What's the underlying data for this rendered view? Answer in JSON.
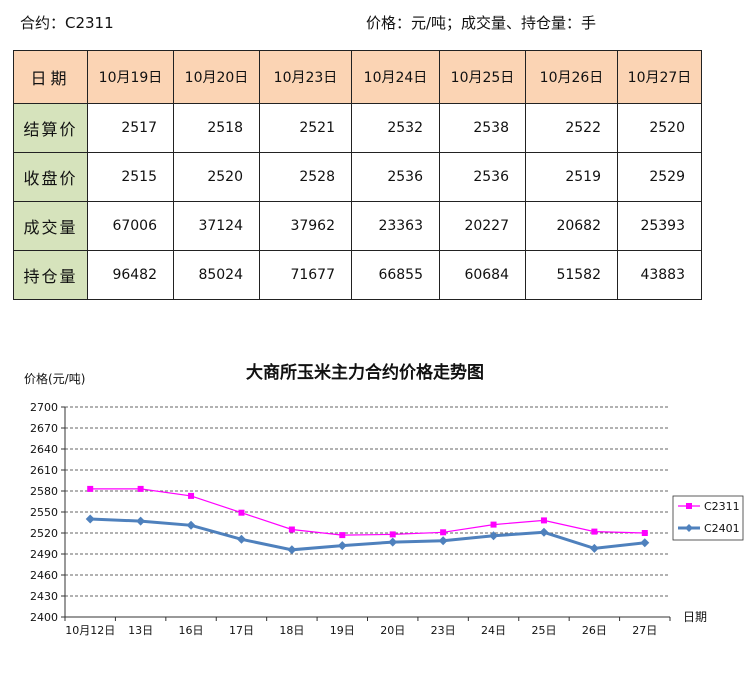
{
  "header": {
    "contract": "合约：C2311",
    "units": "价格：元/吨；成交量、持仓量：手"
  },
  "table": {
    "corner": "日期",
    "columns": [
      "10月19日",
      "10月20日",
      "10月23日",
      "10月24日",
      "10月25日",
      "10月26日",
      "10月27日"
    ],
    "rows": [
      {
        "label": "结算价",
        "values": [
          "2517",
          "2518",
          "2521",
          "2532",
          "2538",
          "2522",
          "2520"
        ]
      },
      {
        "label": "收盘价",
        "values": [
          "2515",
          "2520",
          "2528",
          "2536",
          "2536",
          "2519",
          "2529"
        ]
      },
      {
        "label": "成交量",
        "values": [
          "67006",
          "37124",
          "37962",
          "23363",
          "20227",
          "20682",
          "25393"
        ]
      },
      {
        "label": "持仓量",
        "values": [
          "96482",
          "85024",
          "71677",
          "66855",
          "60684",
          "51582",
          "43883"
        ]
      }
    ]
  },
  "chart_data": {
    "type": "line",
    "title": "大商所玉米主力合约价格走势图",
    "ylabel": "价格(元/吨)",
    "xlabel": "日期",
    "categories": [
      "10月12日",
      "13日",
      "16日",
      "17日",
      "18日",
      "19日",
      "20日",
      "23日",
      "24日",
      "25日",
      "26日",
      "27日"
    ],
    "ylim": [
      2400,
      2700
    ],
    "yticks": [
      2400,
      2430,
      2460,
      2490,
      2520,
      2550,
      2580,
      2610,
      2640,
      2670,
      2700
    ],
    "grid": true,
    "legend": "right",
    "series": [
      {
        "name": "C2311",
        "color": "#ff00ff",
        "marker": "square",
        "values": [
          2583,
          2583,
          2573,
          2549,
          2525,
          2517,
          2518,
          2521,
          2532,
          2538,
          2522,
          2520
        ]
      },
      {
        "name": "C2401",
        "color": "#4f81bd",
        "marker": "diamond",
        "values": [
          2540,
          2537,
          2531,
          2511,
          2496,
          2502,
          2507,
          2509,
          2516,
          2521,
          2498,
          2506
        ]
      }
    ]
  }
}
